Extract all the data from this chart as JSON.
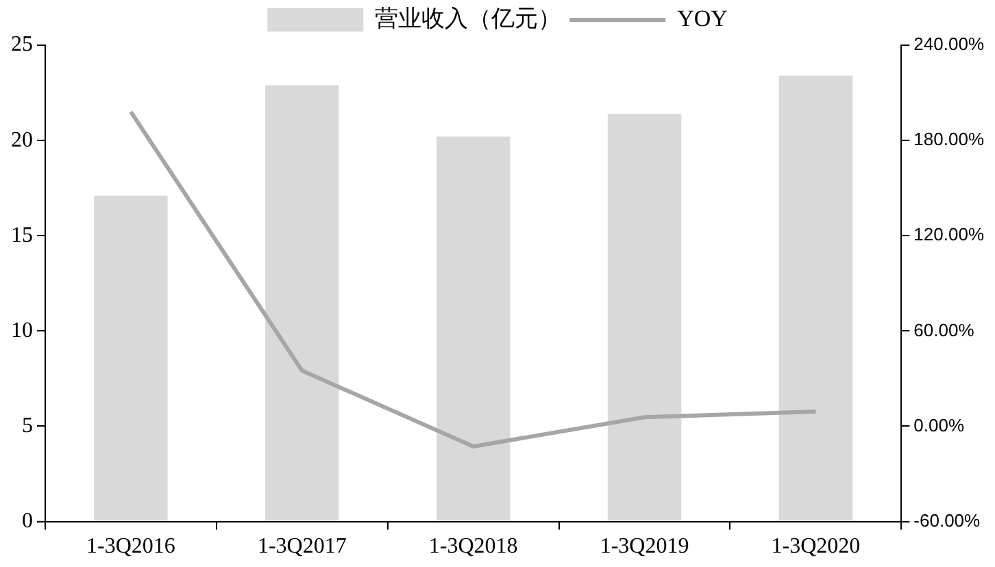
{
  "chart_data": {
    "type": "bar",
    "categories": [
      "1-3Q2016",
      "1-3Q2017",
      "1-3Q2018",
      "1-3Q2019",
      "1-3Q2020"
    ],
    "series": [
      {
        "name": "营业收入（亿元）",
        "color": "#d9d9d9",
        "values": [
          17.1,
          22.9,
          20.2,
          21.4,
          23.4
        ]
      },
      {
        "name": "YOY",
        "type": "line",
        "axis": "y2",
        "color": "#a6a6a6",
        "values": [
          198,
          35,
          -12.7,
          5.7,
          9.3
        ]
      }
    ],
    "ylim": [
      0,
      25
    ],
    "yticks": [
      0,
      5,
      10,
      15,
      20,
      25
    ],
    "y2lim": [
      -60,
      240
    ],
    "y2ticks": [
      {
        "value": -60,
        "label": "-60.00%"
      },
      {
        "value": 0,
        "label": "0.00%"
      },
      {
        "value": 60,
        "label": "60.00%"
      },
      {
        "value": 120,
        "label": "120.00%"
      },
      {
        "value": 180,
        "label": "180.00%"
      },
      {
        "value": 240,
        "label": "240.00%"
      }
    ],
    "grid": false,
    "legend": "top",
    "marker": "none"
  }
}
